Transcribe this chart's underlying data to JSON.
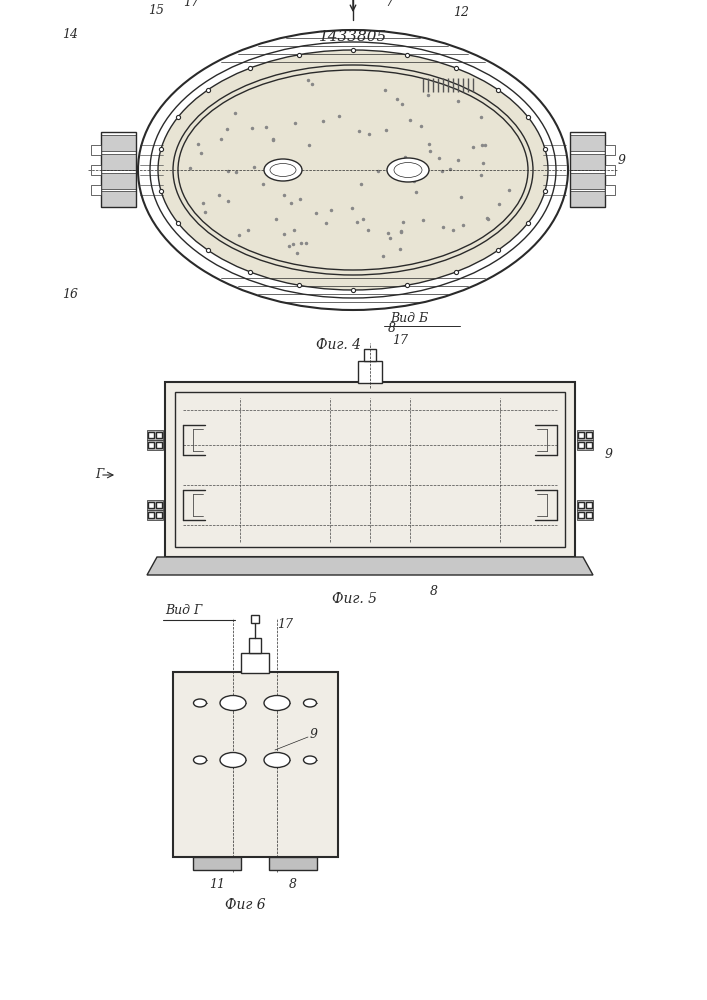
{
  "patent_number": "1433805",
  "bg_color": "#ffffff",
  "line_color": "#2a2a2a",
  "fig4_caption": "Фиг. 4",
  "fig5_caption": "Фиг. 5",
  "fig6_caption": "Фиг 6",
  "vid_b_label": "Вид Б",
  "vid_g_label": "Вид Г"
}
